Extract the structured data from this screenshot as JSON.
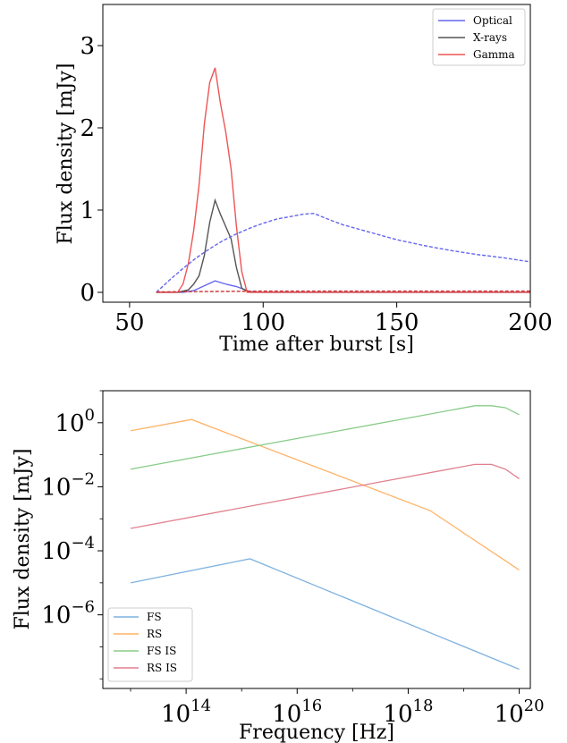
{
  "chart_data": [
    {
      "type": "line",
      "xlabel": "Time after burst [s]",
      "ylabel": "Flux density [mJy]",
      "xlim": [
        40,
        200
      ],
      "ylim": [
        -0.12,
        3.5
      ],
      "x_ticks": [
        50,
        100,
        150,
        200
      ],
      "x_tick_labels": [
        "50",
        "100",
        "150",
        "200"
      ],
      "y_ticks": [
        0,
        1,
        2,
        3
      ],
      "y_tick_labels": [
        "0",
        "1",
        "2",
        "3"
      ],
      "grid": false,
      "legend_position": "top-right",
      "series": [
        {
          "name": "Optical",
          "color": "#6666ee",
          "style": "solid",
          "x": [
            60,
            70,
            74,
            78,
            82,
            86,
            90,
            95,
            100,
            200
          ],
          "y": [
            0,
            0,
            0.02,
            0.08,
            0.14,
            0.1,
            0.07,
            0.01,
            0,
            0
          ]
        },
        {
          "name": "X-rays",
          "color": "#555555",
          "style": "solid",
          "x": [
            60,
            68,
            72,
            74,
            76,
            78,
            80,
            82,
            84,
            86,
            88,
            90,
            92,
            95,
            200
          ],
          "y": [
            0,
            0,
            0.03,
            0.1,
            0.2,
            0.45,
            0.85,
            1.12,
            0.95,
            0.8,
            0.65,
            0.3,
            0.05,
            0,
            0
          ]
        },
        {
          "name": "Gamma",
          "color": "#ee5555",
          "style": "solid",
          "x": [
            60,
            68,
            70,
            72,
            74,
            76,
            78,
            80,
            82,
            84,
            86,
            88,
            90,
            92,
            94,
            200
          ],
          "y": [
            0,
            0,
            0.1,
            0.35,
            0.75,
            1.3,
            2.05,
            2.55,
            2.73,
            2.3,
            1.95,
            1.5,
            0.8,
            0.25,
            0,
            0
          ]
        },
        {
          "color": "#6666ee",
          "style": "dashed",
          "x": [
            60,
            65,
            70,
            75,
            80,
            85,
            90,
            95,
            100,
            105,
            110,
            115,
            119,
            125,
            130,
            140,
            150,
            160,
            170,
            180,
            190,
            200
          ],
          "y": [
            0,
            0.15,
            0.29,
            0.42,
            0.53,
            0.63,
            0.71,
            0.78,
            0.84,
            0.89,
            0.92,
            0.95,
            0.96,
            0.88,
            0.82,
            0.73,
            0.64,
            0.57,
            0.51,
            0.46,
            0.42,
            0.37
          ]
        },
        {
          "color": "#cc3333",
          "style": "dashed",
          "x": [
            60,
            80,
            100,
            120,
            140,
            160,
            180,
            200
          ],
          "y": [
            0.005,
            0.01,
            0.015,
            0.015,
            0.015,
            0.015,
            0.015,
            0.015
          ]
        }
      ]
    },
    {
      "type": "line",
      "xlabel": "Frequency [Hz]",
      "ylabel": "Flux density [mJy]",
      "xscale": "log",
      "yscale": "log",
      "xlim_log10": [
        12.5,
        20.2
      ],
      "ylim_log10": [
        -8.3,
        1.0
      ],
      "x_ticks_log10": [
        14,
        16,
        18,
        20
      ],
      "x_tick_labels": [
        {
          "base": "10",
          "exp": "14"
        },
        {
          "base": "10",
          "exp": "16"
        },
        {
          "base": "10",
          "exp": "18"
        },
        {
          "base": "10",
          "exp": "20"
        }
      ],
      "y_ticks_log10": [
        0,
        -2,
        -4,
        -6
      ],
      "y_tick_labels": [
        {
          "base": "10",
          "exp": "0"
        },
        {
          "base": "10",
          "exp": "−2"
        },
        {
          "base": "10",
          "exp": "−4"
        },
        {
          "base": "10",
          "exp": "−6"
        }
      ],
      "grid": false,
      "legend_position": "bottom-left",
      "series": [
        {
          "name": "FS",
          "color": "#7fb2e0",
          "log10_x": [
            13,
            15.15,
            20
          ],
          "log10_y": [
            -5,
            -4.25,
            -7.7
          ]
        },
        {
          "name": "RS",
          "color": "#ffb266",
          "log10_x": [
            13,
            14.1,
            18.4,
            20
          ],
          "log10_y": [
            -0.25,
            0.1,
            -2.75,
            -4.6
          ]
        },
        {
          "name": "FS IS",
          "color": "#88cc88",
          "log10_x": [
            13,
            19.2,
            19.5,
            19.75,
            20
          ],
          "log10_y": [
            -1.45,
            0.53,
            0.53,
            0.47,
            0.25
          ]
        },
        {
          "name": "RS IS",
          "color": "#e0808f",
          "log10_x": [
            13,
            19.2,
            19.5,
            19.75,
            20
          ],
          "log10_y": [
            -3.3,
            -1.3,
            -1.3,
            -1.45,
            -1.75
          ]
        }
      ]
    }
  ]
}
